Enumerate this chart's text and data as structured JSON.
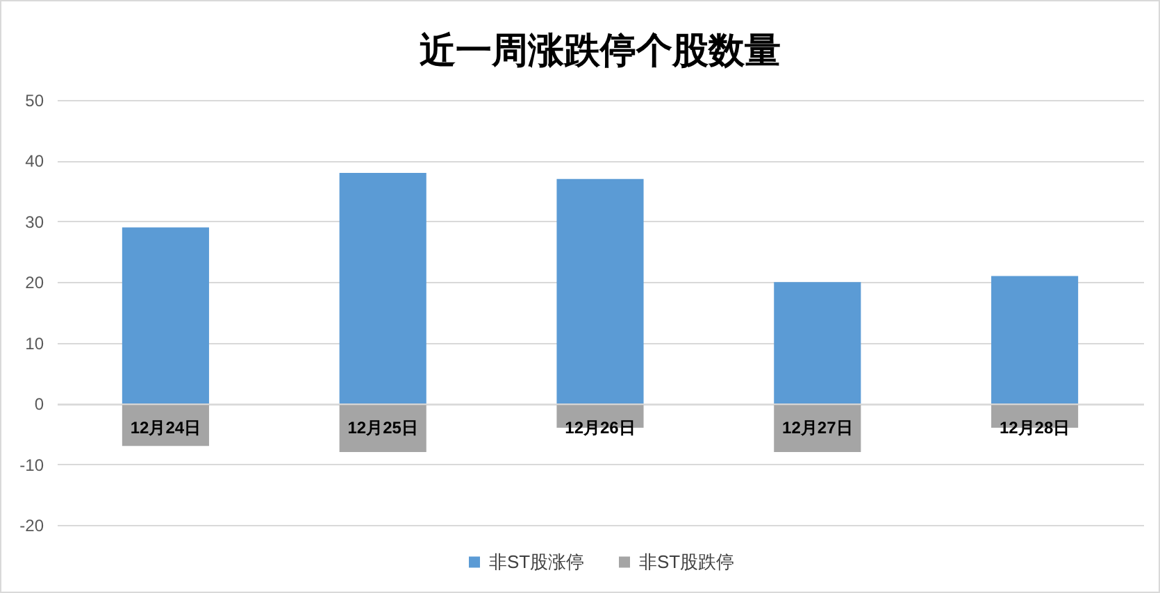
{
  "chart_data": {
    "type": "bar",
    "title": "近一周涨跌停个股数量",
    "categories": [
      "12月24日",
      "12月25日",
      "12月26日",
      "12月27日",
      "12月28日"
    ],
    "series": [
      {
        "name": "非ST股涨停",
        "color": "#5b9bd5",
        "values": [
          29,
          38,
          37,
          20,
          21
        ]
      },
      {
        "name": "非ST股跌停",
        "color": "#a5a5a5",
        "values": [
          -7,
          -8,
          -4,
          -8,
          -4
        ]
      }
    ],
    "stacked": true,
    "ylim": [
      -20,
      50
    ],
    "yticks": [
      -20,
      -10,
      0,
      10,
      20,
      30,
      40,
      50
    ],
    "grid": "y",
    "legend": "bottom"
  }
}
